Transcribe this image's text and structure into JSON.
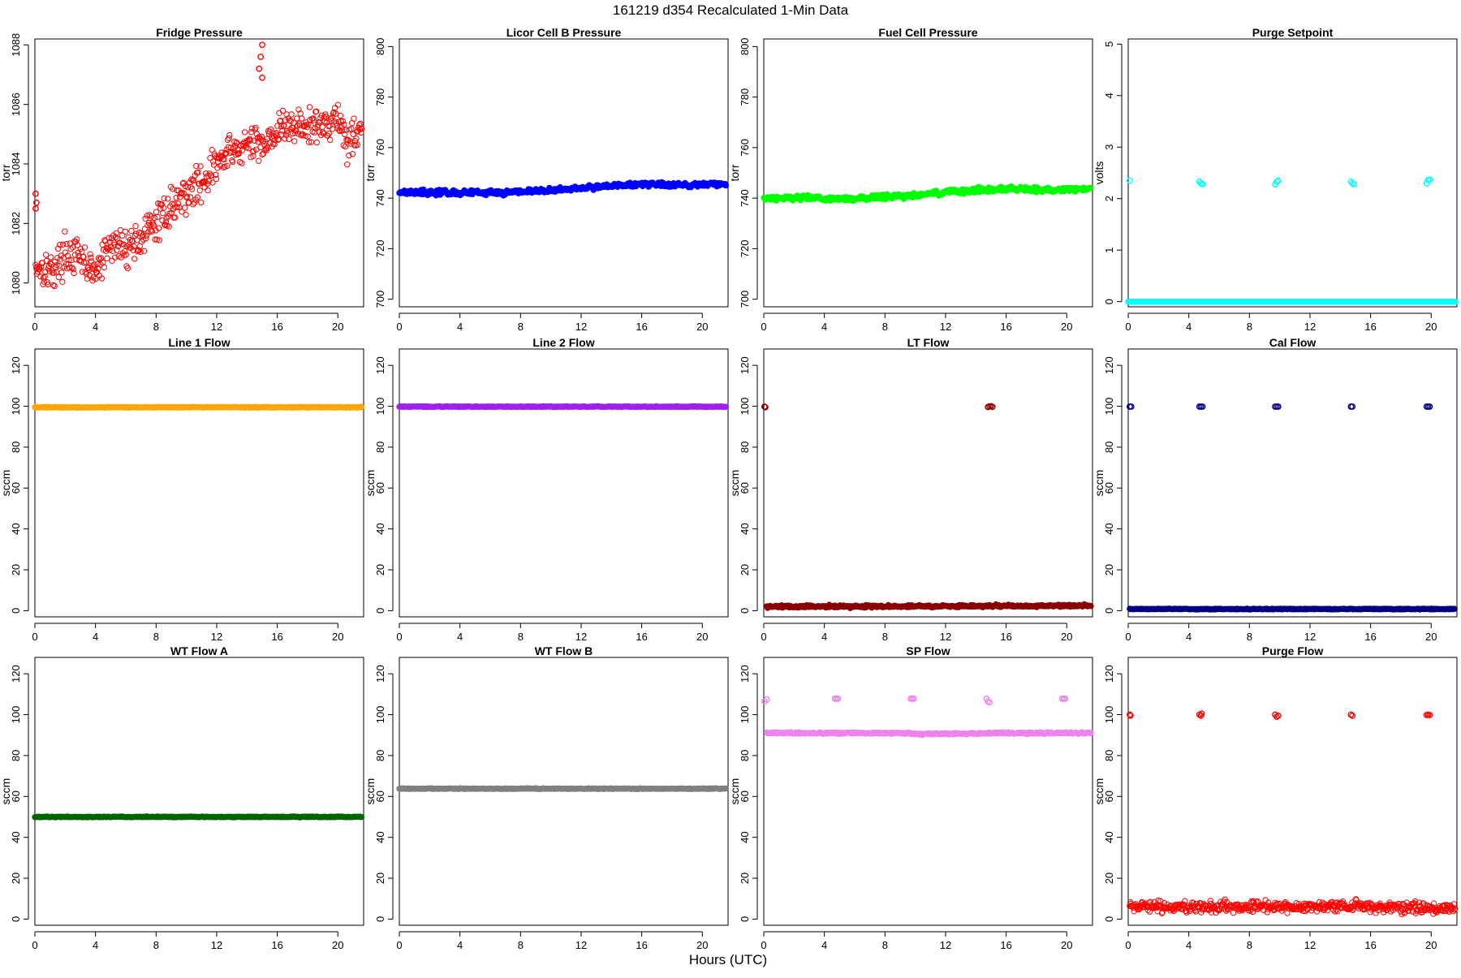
{
  "page_title": "161219   d354   Recalculated 1-Min Data",
  "xlabel": "Hours (UTC)",
  "chart_data": [
    {
      "type": "scatter",
      "title": "Fridge Pressure",
      "ylabel": "torr",
      "color": "#ff0000",
      "marker": "open-circle",
      "xlim": [
        0,
        21.7
      ],
      "ylim": [
        1079.2,
        1088.2
      ],
      "xticks": [
        0,
        4,
        8,
        12,
        16,
        20
      ],
      "yticks": [
        1080,
        1082,
        1084,
        1086,
        1088
      ],
      "trend": [
        [
          0.05,
          1080.6
        ],
        [
          1.2,
          1080.4
        ],
        [
          2,
          1081.0
        ],
        [
          3,
          1080.8
        ],
        [
          4,
          1080.3
        ],
        [
          5,
          1081.3
        ],
        [
          6,
          1081.2
        ],
        [
          7,
          1081.5
        ],
        [
          8,
          1082.0
        ],
        [
          9,
          1082.6
        ],
        [
          10,
          1083.0
        ],
        [
          11,
          1083.4
        ],
        [
          12,
          1084.0
        ],
        [
          13,
          1084.4
        ],
        [
          14,
          1084.6
        ],
        [
          15,
          1084.7
        ],
        [
          16,
          1085.1
        ],
        [
          17,
          1085.3
        ],
        [
          18,
          1085.2
        ],
        [
          19,
          1085.3
        ],
        [
          20,
          1085.6
        ],
        [
          20.6,
          1084.7
        ],
        [
          21.6,
          1085.3
        ]
      ],
      "noise": 0.3,
      "outliers": [
        [
          0.05,
          1082.5
        ],
        [
          0.05,
          1083.0
        ],
        [
          0.1,
          1082.7
        ],
        [
          14.8,
          1087.2
        ],
        [
          14.9,
          1087.6
        ],
        [
          15.0,
          1088.0
        ],
        [
          15.0,
          1086.9
        ]
      ]
    },
    {
      "type": "scatter",
      "title": "Licor Cell B Pressure",
      "ylabel": "torr",
      "color": "#0000ff",
      "marker": "filled",
      "xlim": [
        0,
        21.7
      ],
      "ylim": [
        697,
        803
      ],
      "xticks": [
        0,
        4,
        8,
        12,
        16,
        20
      ],
      "yticks": [
        700,
        720,
        740,
        760,
        780,
        800
      ],
      "trend": [
        [
          0,
          742.5
        ],
        [
          2,
          742.3
        ],
        [
          4,
          742.2
        ],
        [
          6,
          742.1
        ],
        [
          8,
          742.6
        ],
        [
          10,
          743.0
        ],
        [
          12,
          744.0
        ],
        [
          14,
          745.0
        ],
        [
          16,
          745.5
        ],
        [
          18,
          745.2
        ],
        [
          20,
          745.4
        ],
        [
          21.6,
          745.5
        ]
      ],
      "noise": 0.5,
      "outliers": []
    },
    {
      "type": "scatter",
      "title": "Fuel Cell Pressure",
      "ylabel": "torr",
      "color": "#00ff00",
      "marker": "filled",
      "xlim": [
        0,
        21.7
      ],
      "ylim": [
        697,
        803
      ],
      "xticks": [
        0,
        4,
        8,
        12,
        16,
        20
      ],
      "yticks": [
        700,
        720,
        740,
        760,
        780,
        800
      ],
      "trend": [
        [
          0,
          740.0
        ],
        [
          2,
          740.3
        ],
        [
          4,
          739.8
        ],
        [
          6,
          739.6
        ],
        [
          8,
          740.5
        ],
        [
          10,
          741.2
        ],
        [
          12,
          742.2
        ],
        [
          14,
          743.3
        ],
        [
          16,
          743.8
        ],
        [
          18,
          743.4
        ],
        [
          20,
          743.5
        ],
        [
          21.6,
          743.6
        ]
      ],
      "noise": 0.5,
      "outliers": []
    },
    {
      "type": "scatter",
      "title": "Purge Setpoint",
      "ylabel": "volts",
      "color": "#00ffff",
      "marker": "open-circle",
      "xlim": [
        0,
        21.7
      ],
      "ylim": [
        -0.1,
        5.1
      ],
      "xticks": [
        0,
        4,
        8,
        12,
        16,
        20
      ],
      "yticks": [
        0,
        1,
        2,
        3,
        4,
        5
      ],
      "trend": [
        [
          0,
          0.0
        ],
        [
          21.6,
          0.0
        ]
      ],
      "noise": 0.0,
      "outliers": [
        [
          0.1,
          2.35
        ],
        [
          4.7,
          2.33
        ],
        [
          4.8,
          2.3
        ],
        [
          4.9,
          2.28
        ],
        [
          9.7,
          2.28
        ],
        [
          9.8,
          2.33
        ],
        [
          9.9,
          2.35
        ],
        [
          14.7,
          2.33
        ],
        [
          14.8,
          2.3
        ],
        [
          14.9,
          2.28
        ],
        [
          19.7,
          2.3
        ],
        [
          19.8,
          2.36
        ],
        [
          19.9,
          2.37
        ]
      ]
    },
    {
      "type": "scatter",
      "title": "Line 1 Flow",
      "ylabel": "sccm",
      "color": "#ffa500",
      "marker": "filled",
      "xlim": [
        0,
        21.7
      ],
      "ylim": [
        -3,
        128
      ],
      "xticks": [
        0,
        4,
        8,
        12,
        16,
        20
      ],
      "yticks": [
        0,
        20,
        40,
        60,
        80,
        100,
        120
      ],
      "trend": [
        [
          0,
          99.5
        ],
        [
          21.6,
          99.5
        ]
      ],
      "noise": 0.1,
      "outliers": []
    },
    {
      "type": "scatter",
      "title": "Line 2 Flow",
      "ylabel": "sccm",
      "color": "#a020f0",
      "marker": "filled",
      "xlim": [
        0,
        21.7
      ],
      "ylim": [
        -3,
        128
      ],
      "xticks": [
        0,
        4,
        8,
        12,
        16,
        20
      ],
      "yticks": [
        0,
        20,
        40,
        60,
        80,
        100,
        120
      ],
      "trend": [
        [
          0,
          99.8
        ],
        [
          21.6,
          99.8
        ]
      ],
      "noise": 0.1,
      "outliers": []
    },
    {
      "type": "scatter",
      "title": "LT Flow",
      "ylabel": "sccm",
      "color": "#8b0000",
      "marker": "filled",
      "xlim": [
        0,
        21.7
      ],
      "ylim": [
        -3,
        128
      ],
      "xticks": [
        0,
        4,
        8,
        12,
        16,
        20
      ],
      "yticks": [
        0,
        20,
        40,
        60,
        80,
        100,
        120
      ],
      "trend": [
        [
          0.2,
          2.0
        ],
        [
          14.7,
          2.2
        ],
        [
          15.1,
          2.3
        ],
        [
          21.6,
          2.5
        ]
      ],
      "noise": 0.3,
      "outliers": [
        [
          0.05,
          99.8
        ],
        [
          0.1,
          99.5
        ],
        [
          14.8,
          99.6
        ],
        [
          14.9,
          99.9
        ],
        [
          15.0,
          100.0
        ],
        [
          15.1,
          99.7
        ]
      ]
    },
    {
      "type": "scatter",
      "title": "Cal Flow",
      "ylabel": "sccm",
      "color": "#000080",
      "marker": "filled",
      "xlim": [
        0,
        21.7
      ],
      "ylim": [
        -3,
        128
      ],
      "xticks": [
        0,
        4,
        8,
        12,
        16,
        20
      ],
      "yticks": [
        0,
        20,
        40,
        60,
        80,
        100,
        120
      ],
      "trend": [
        [
          0.1,
          0.8
        ],
        [
          21.6,
          0.8
        ]
      ],
      "noise": 0.1,
      "outliers": [
        [
          0.1,
          99.8
        ],
        [
          0.2,
          99.8
        ],
        [
          4.7,
          99.8
        ],
        [
          4.8,
          99.8
        ],
        [
          4.9,
          99.8
        ],
        [
          9.7,
          99.8
        ],
        [
          9.8,
          99.8
        ],
        [
          9.9,
          99.8
        ],
        [
          14.7,
          99.8
        ],
        [
          14.8,
          99.8
        ],
        [
          19.7,
          99.8
        ],
        [
          19.8,
          99.8
        ],
        [
          19.9,
          99.8
        ]
      ]
    },
    {
      "type": "scatter",
      "title": "WT Flow A",
      "ylabel": "sccm",
      "color": "#006400",
      "marker": "filled",
      "xlim": [
        0,
        21.7
      ],
      "ylim": [
        -3,
        128
      ],
      "xticks": [
        0,
        4,
        8,
        12,
        16,
        20
      ],
      "yticks": [
        0,
        20,
        40,
        60,
        80,
        100,
        120
      ],
      "trend": [
        [
          0,
          50.0
        ],
        [
          21.6,
          50.0
        ]
      ],
      "noise": 0.1,
      "outliers": []
    },
    {
      "type": "scatter",
      "title": "WT Flow B",
      "ylabel": "sccm",
      "color": "#808080",
      "marker": "filled",
      "xlim": [
        0,
        21.7
      ],
      "ylim": [
        -3,
        128
      ],
      "xticks": [
        0,
        4,
        8,
        12,
        16,
        20
      ],
      "yticks": [
        0,
        20,
        40,
        60,
        80,
        100,
        120
      ],
      "trend": [
        [
          0,
          63.8
        ],
        [
          21.6,
          63.8
        ]
      ],
      "noise": 0.1,
      "outliers": []
    },
    {
      "type": "scatter",
      "title": "SP Flow",
      "ylabel": "sccm",
      "color": "#ee82ee",
      "marker": "filled",
      "xlim": [
        0,
        21.7
      ],
      "ylim": [
        -3,
        128
      ],
      "xticks": [
        0,
        4,
        8,
        12,
        16,
        20
      ],
      "yticks": [
        0,
        20,
        40,
        60,
        80,
        100,
        120
      ],
      "trend": [
        [
          0.2,
          91.0
        ],
        [
          9.6,
          91.0
        ],
        [
          10.0,
          90.5
        ],
        [
          14.6,
          90.8
        ],
        [
          15.0,
          91.0
        ],
        [
          21.6,
          91.0
        ]
      ],
      "noise": 0.2,
      "outliers": [
        [
          0.05,
          106.5
        ],
        [
          0.2,
          107.5
        ],
        [
          4.7,
          107.8
        ],
        [
          4.8,
          107.8
        ],
        [
          4.9,
          107.8
        ],
        [
          9.7,
          107.8
        ],
        [
          9.8,
          107.8
        ],
        [
          9.9,
          107.8
        ],
        [
          14.7,
          107.8
        ],
        [
          14.8,
          106.5
        ],
        [
          14.9,
          106.0
        ],
        [
          19.7,
          107.8
        ],
        [
          19.8,
          107.8
        ],
        [
          19.9,
          107.8
        ]
      ]
    },
    {
      "type": "scatter",
      "title": "Purge Flow",
      "ylabel": "sccm",
      "color": "#ff0000",
      "marker": "open-circle",
      "xlim": [
        0,
        21.7
      ],
      "ylim": [
        -3,
        128
      ],
      "xticks": [
        0,
        4,
        8,
        12,
        16,
        20
      ],
      "yticks": [
        0,
        20,
        40,
        60,
        80,
        100,
        120
      ],
      "trend": [
        [
          0.1,
          6.0
        ],
        [
          14.8,
          6.0
        ],
        [
          15.0,
          9.0
        ],
        [
          15.3,
          6.0
        ],
        [
          21.6,
          5.0
        ]
      ],
      "noise": 1.3,
      "outliers": [
        [
          0.1,
          100.0
        ],
        [
          0.15,
          99.5
        ],
        [
          4.7,
          100.0
        ],
        [
          4.8,
          99.5
        ],
        [
          4.85,
          100.5
        ],
        [
          9.7,
          100.0
        ],
        [
          9.8,
          99.0
        ],
        [
          9.9,
          99.5
        ],
        [
          14.7,
          100.0
        ],
        [
          14.8,
          99.5
        ],
        [
          19.7,
          99.8
        ],
        [
          19.8,
          100.0
        ],
        [
          19.9,
          99.8
        ]
      ]
    }
  ]
}
